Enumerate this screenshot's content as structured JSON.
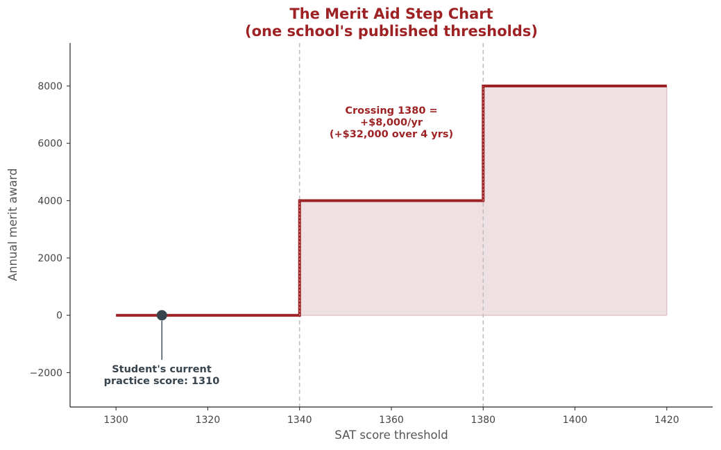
{
  "colors": {
    "step_line": "#9e2224",
    "fill": "#efe1e3",
    "threshold_line": "#c0c0c0",
    "marker": "#37434d",
    "axis": "#222222"
  },
  "chart_data": {
    "type": "line",
    "line_style": "step",
    "title_lines": [
      "The Merit Aid Step Chart",
      "(one school's published thresholds)"
    ],
    "xlabel": "SAT score threshold",
    "ylabel": "Annual merit award",
    "xlim": [
      1290,
      1430
    ],
    "ylim": [
      -3200,
      9500
    ],
    "xticks": [
      1300,
      1320,
      1340,
      1360,
      1380,
      1400,
      1420
    ],
    "yticks": [
      -2000,
      0,
      2000,
      4000,
      6000,
      8000
    ],
    "grid": false,
    "series": [
      {
        "x": [
          1300,
          1340,
          1340,
          1380,
          1380,
          1420
        ],
        "y": [
          0,
          0,
          4000,
          4000,
          8000,
          8000
        ]
      }
    ],
    "shaded_region": {
      "x_from": 1340,
      "x_to": 1420
    },
    "threshold_lines_x": [
      1340,
      1380
    ],
    "marker_point": {
      "x": 1310,
      "y": 0
    },
    "annotations": {
      "crossing": [
        "Crossing 1380 =",
        "+$8,000/yr",
        "(+$32,000 over 4 yrs)"
      ],
      "current_score": [
        "Student's current",
        "practice score: 1310"
      ]
    }
  }
}
